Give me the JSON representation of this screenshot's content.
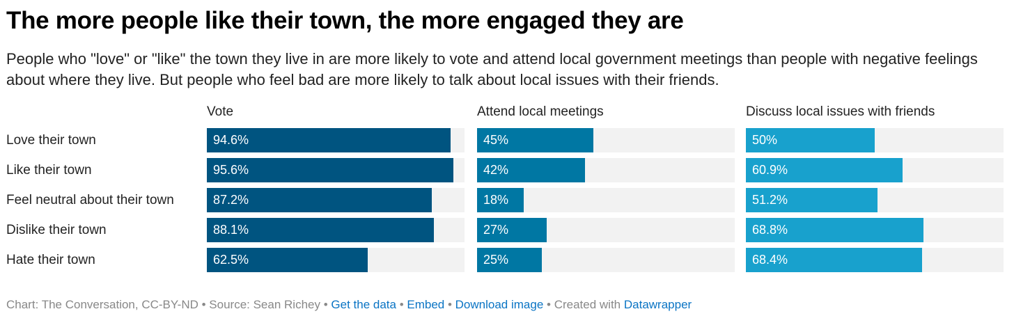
{
  "title": "The more people like their town, the more engaged they are",
  "subtitle": "People who \"love\" or \"like\" the town they live in are more likely to vote and attend local government meetings than people with negative feelings about where they live. But people who feel bad are more likely to talk about local issues with their friends.",
  "chart_data": {
    "type": "bar",
    "orientation": "horizontal",
    "categories": [
      "Love their town",
      "Like their town",
      "Feel neutral about their town",
      "Dislike their town",
      "Hate their town"
    ],
    "xlim": [
      0,
      100
    ],
    "series": [
      {
        "name": "Vote",
        "values": [
          94.6,
          95.6,
          87.2,
          88.1,
          62.5
        ],
        "labels": [
          "94.6%",
          "95.6%",
          "87.2%",
          "88.1%",
          "62.5%"
        ],
        "color": "#005480"
      },
      {
        "name": "Attend local meetings",
        "values": [
          45,
          42,
          18,
          27,
          25
        ],
        "labels": [
          "45%",
          "42%",
          "18%",
          "27%",
          "25%"
        ],
        "color": "#0077a3"
      },
      {
        "name": "Discuss local issues with friends",
        "values": [
          50,
          60.9,
          51.2,
          68.8,
          68.4
        ],
        "labels": [
          "50%",
          "60.9%",
          "51.2%",
          "68.8%",
          "68.4%"
        ],
        "color": "#18a1cd"
      }
    ]
  },
  "footer": {
    "credit": "Chart: The Conversation, CC-BY-ND • Source: Sean Richey • ",
    "get_data": "Get the data",
    "sep1": " • ",
    "embed": "Embed",
    "sep2": "  • ",
    "download": "Download image",
    "sep3": " • Created with ",
    "datawrapper": "Datawrapper"
  }
}
